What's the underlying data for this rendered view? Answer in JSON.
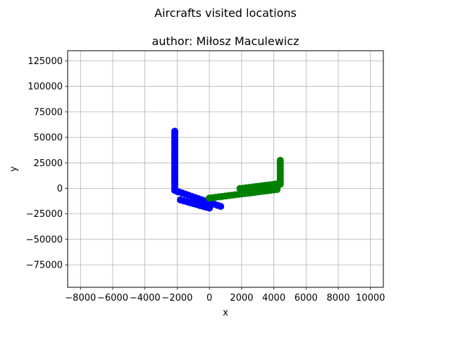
{
  "chart_data": {
    "type": "scatter",
    "suptitle": "Aircrafts visited locations",
    "title": "author: Miłosz Maculewicz",
    "xlabel": "x",
    "ylabel": "y",
    "xlim": [
      -8800,
      10800
    ],
    "ylim": [
      -97000,
      135000
    ],
    "xticks": [
      -8000,
      -6000,
      -4000,
      -2000,
      0,
      2000,
      4000,
      6000,
      8000,
      10000
    ],
    "xtick_labels": [
      "−8000",
      "−6000",
      "−4000",
      "−2000",
      "0",
      "2000",
      "4000",
      "6000",
      "8000",
      "10000"
    ],
    "yticks": [
      -75000,
      -50000,
      -25000,
      0,
      25000,
      50000,
      75000,
      100000,
      125000
    ],
    "ytick_labels": [
      "−75000",
      "−50000",
      "−25000",
      "0",
      "25000",
      "50000",
      "75000",
      "100000",
      "125000"
    ],
    "grid": true,
    "series": [
      {
        "color": "#0000ff",
        "points": [
          [
            -2150,
            56000
          ],
          [
            -2150,
            54000
          ],
          [
            -2150,
            52000
          ],
          [
            -2150,
            50000
          ],
          [
            -2150,
            48000
          ],
          [
            -2150,
            46000
          ],
          [
            -2150,
            44000
          ],
          [
            -2150,
            42000
          ],
          [
            -2150,
            40000
          ],
          [
            -2150,
            38000
          ],
          [
            -2150,
            36000
          ],
          [
            -2150,
            34000
          ],
          [
            -2150,
            32000
          ],
          [
            -2150,
            30000
          ],
          [
            -2150,
            28000
          ],
          [
            -2150,
            26000
          ],
          [
            -2150,
            24000
          ],
          [
            -2150,
            22000
          ],
          [
            -2150,
            20000
          ],
          [
            -2150,
            18000
          ],
          [
            -2150,
            16000
          ],
          [
            -2150,
            14000
          ],
          [
            -2150,
            12000
          ],
          [
            -2150,
            10000
          ],
          [
            -2150,
            8000
          ],
          [
            -2150,
            6000
          ],
          [
            -2150,
            4000
          ],
          [
            -2150,
            2000
          ],
          [
            -2150,
            0
          ],
          [
            -2150,
            -2000
          ],
          [
            -1900,
            -3400
          ],
          [
            -1700,
            -4500
          ],
          [
            -1500,
            -5600
          ],
          [
            -1300,
            -6700
          ],
          [
            -1100,
            -7800
          ],
          [
            -900,
            -8900
          ],
          [
            -700,
            -10000
          ],
          [
            -500,
            -11100
          ],
          [
            -300,
            -12200
          ],
          [
            -100,
            -13300
          ],
          [
            100,
            -14400
          ],
          [
            300,
            -15500
          ],
          [
            500,
            -16600
          ],
          [
            700,
            -17700
          ],
          [
            0,
            -19300
          ],
          [
            -200,
            -18500
          ],
          [
            -400,
            -17600
          ],
          [
            -600,
            -16700
          ],
          [
            -800,
            -15800
          ],
          [
            -1000,
            -14900
          ],
          [
            -1200,
            -14000
          ],
          [
            -1400,
            -13100
          ],
          [
            -1600,
            -12200
          ],
          [
            -1800,
            -11300
          ],
          [
            -2000,
            -3000
          ]
        ]
      },
      {
        "color": "#008000",
        "points": [
          [
            0,
            -9500
          ],
          [
            200,
            -9100
          ],
          [
            400,
            -8700
          ],
          [
            600,
            -8300
          ],
          [
            800,
            -7900
          ],
          [
            1000,
            -7500
          ],
          [
            1200,
            -7100
          ],
          [
            1400,
            -6700
          ],
          [
            1600,
            -6300
          ],
          [
            1800,
            -5900
          ],
          [
            2000,
            -5500
          ],
          [
            2200,
            -5100
          ],
          [
            2400,
            -4700
          ],
          [
            2600,
            -4300
          ],
          [
            2800,
            -3900
          ],
          [
            3000,
            -3500
          ],
          [
            3200,
            -3100
          ],
          [
            3400,
            -2700
          ],
          [
            3600,
            -2300
          ],
          [
            3800,
            -1900
          ],
          [
            4000,
            -1500
          ],
          [
            4200,
            -1100
          ],
          [
            4400,
            4000
          ],
          [
            4400,
            6000
          ],
          [
            4400,
            8000
          ],
          [
            4400,
            10000
          ],
          [
            4400,
            12000
          ],
          [
            4400,
            14000
          ],
          [
            4400,
            16000
          ],
          [
            4400,
            18000
          ],
          [
            4400,
            20000
          ],
          [
            4400,
            22000
          ],
          [
            4400,
            24000
          ],
          [
            4400,
            26000
          ],
          [
            4400,
            27500
          ],
          [
            4300,
            4500
          ],
          [
            4100,
            4200
          ],
          [
            3900,
            3800
          ],
          [
            3700,
            3400
          ],
          [
            3500,
            3000
          ],
          [
            3300,
            2600
          ],
          [
            3100,
            2200
          ],
          [
            2900,
            1800
          ],
          [
            2700,
            1400
          ],
          [
            2500,
            1000
          ],
          [
            2300,
            600
          ],
          [
            2100,
            200
          ],
          [
            1900,
            -200
          ]
        ]
      }
    ]
  }
}
